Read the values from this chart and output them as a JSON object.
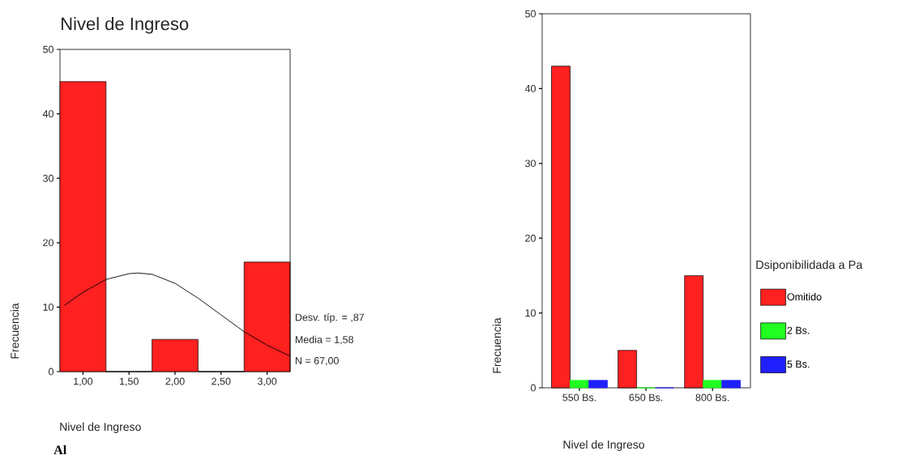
{
  "chart_data": [
    {
      "type": "histogram",
      "title": "Nivel de Ingreso",
      "xlabel": "Nivel de Ingreso",
      "ylabel": "Frecuencia",
      "bins": [
        0.75,
        1.25,
        1.75,
        2.25,
        2.75,
        3.25
      ],
      "values": [
        45,
        0,
        5,
        0,
        17
      ],
      "color": "#ff2020",
      "series": [
        {
          "type": "line",
          "color": "#000000",
          "x": [
            0.8,
            1.0,
            1.25,
            1.5,
            1.6,
            1.75,
            2.0,
            2.25,
            2.5,
            2.75,
            3.0,
            3.25
          ],
          "values": [
            10.3,
            12.3,
            14.3,
            15.2,
            15.3,
            15.1,
            13.7,
            11.4,
            8.8,
            6.2,
            4.1,
            2.4
          ]
        }
      ],
      "xlim": [
        0.75,
        3.25
      ],
      "xticks": [
        {
          "value": 1,
          "label": "1,00"
        },
        {
          "value": 1.5,
          "label": "1,50"
        },
        {
          "value": 2,
          "label": "2,00"
        },
        {
          "value": 2.5,
          "label": "2,50"
        },
        {
          "value": 3,
          "label": "3,00"
        }
      ],
      "ylim": [
        0,
        50
      ],
      "yticks": [
        0,
        10,
        20,
        30,
        40,
        50
      ],
      "annotations": [
        "Desv. típ. = ,87",
        "Media = 1,58",
        "N = 67,00",
        "Al"
      ]
    },
    {
      "type": "bar",
      "xlabel": "Nivel de Ingreso",
      "ylabel": "Frecuencia",
      "legend_title": "Dsiponibilidada a Pa",
      "legend": "right",
      "categories": [
        "550 Bs.",
        "650 Bs.",
        "800 Bs."
      ],
      "series": [
        {
          "name": "Omitido",
          "color": "#ff2020",
          "values": [
            43,
            5,
            15
          ]
        },
        {
          "name": "2 Bs.",
          "color": "#20ff20",
          "values": [
            1,
            0,
            1
          ]
        },
        {
          "name": "5 Bs.",
          "color": "#2020ff",
          "values": [
            1,
            0,
            1
          ]
        }
      ],
      "ylim": [
        0,
        50
      ],
      "yticks": [
        0,
        10,
        20,
        30,
        40,
        50
      ]
    }
  ]
}
